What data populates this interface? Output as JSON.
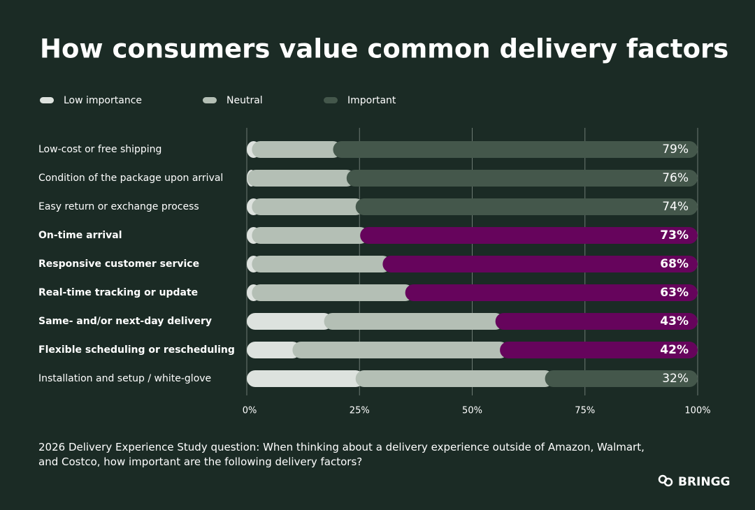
{
  "chart_data": {
    "type": "stacked-bar-horizontal",
    "title": "How consumers value common delivery factors",
    "categories": [
      "Low-cost or free shipping",
      "Condition of the package upon arrival",
      "Easy return or exchange process",
      "On-time arrival",
      "Responsive customer service",
      "Real-time tracking or update",
      "Same- and/or next-day delivery",
      "Flexible scheduling or rescheduling",
      "Installation and setup / white-glove"
    ],
    "highlighted": [
      false,
      false,
      false,
      true,
      true,
      true,
      true,
      true,
      false
    ],
    "highlight_color": "#66045c",
    "series": [
      {
        "name": "Low importance",
        "color": "#dde2de",
        "values": [
          3,
          2,
          3,
          3,
          3,
          3,
          19,
          12,
          26
        ]
      },
      {
        "name": "Neutral",
        "color": "#b4bfb5",
        "values": [
          18,
          22,
          23,
          24,
          29,
          34,
          38,
          46,
          42
        ]
      },
      {
        "name": "Important",
        "color": "#44574b",
        "values": [
          79,
          76,
          74,
          73,
          68,
          63,
          43,
          42,
          32
        ],
        "value_labels": [
          "79%",
          "76%",
          "74%",
          "73%",
          "68%",
          "63%",
          "43%",
          "42%",
          "32%"
        ]
      }
    ],
    "xlim": [
      0,
      100
    ],
    "xticks": [
      {
        "value": 0,
        "label": "0%"
      },
      {
        "value": 25,
        "label": "25%"
      },
      {
        "value": 50,
        "label": "50%"
      },
      {
        "value": 75,
        "label": "75%"
      },
      {
        "value": 100,
        "label": "100%"
      }
    ],
    "grid": true,
    "note": "2026 Delivery Experience Study question: When thinking about a delivery experience outside of Amazon, Walmart, and Costco, how important are the following delivery factors?",
    "brand": "BRINGG"
  }
}
